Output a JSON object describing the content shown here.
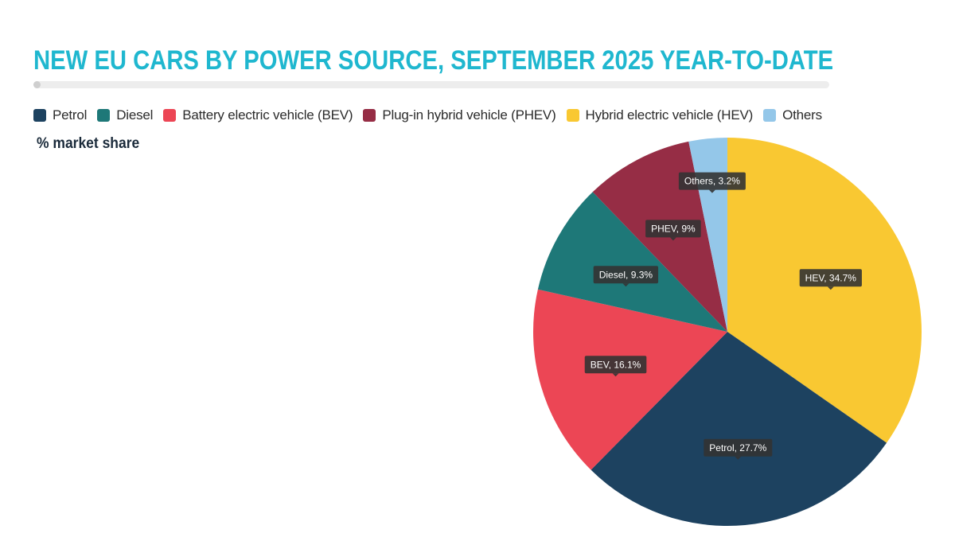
{
  "title": "NEW EU CARS BY POWER SOURCE, SEPTEMBER 2025 YEAR-TO-DATE",
  "subtitle": "% market share",
  "legend": [
    {
      "label": "Petrol",
      "color": "#1d4260"
    },
    {
      "label": "Diesel",
      "color": "#1e7878"
    },
    {
      "label": "Battery electric vehicle (BEV)",
      "color": "#ec4655"
    },
    {
      "label": "Plug-in hybrid vehicle (PHEV)",
      "color": "#962d45"
    },
    {
      "label": "Hybrid electric vehicle (HEV)",
      "color": "#f9c832"
    },
    {
      "label": "Others",
      "color": "#94c7e9"
    }
  ],
  "chart_data": {
    "type": "pie",
    "title": "NEW EU CARS BY POWER SOURCE, SEPTEMBER 2025 YEAR-TO-DATE",
    "subtitle": "% market share",
    "legend_position": "top-left",
    "slices": [
      {
        "name": "HEV",
        "legend": "Hybrid electric vehicle (HEV)",
        "value": 34.7,
        "label": "HEV, 34.7%",
        "color": "#f9c832"
      },
      {
        "name": "Petrol",
        "legend": "Petrol",
        "value": 27.7,
        "label": "Petrol, 27.7%",
        "color": "#1d4260"
      },
      {
        "name": "BEV",
        "legend": "Battery electric vehicle (BEV)",
        "value": 16.1,
        "label": "BEV, 16.1%",
        "color": "#ec4655"
      },
      {
        "name": "Diesel",
        "legend": "Diesel",
        "value": 9.3,
        "label": "Diesel, 9.3%",
        "color": "#1e7878"
      },
      {
        "name": "PHEV",
        "legend": "Plug-in hybrid vehicle (PHEV)",
        "value": 9,
        "label": "PHEV, 9%",
        "color": "#962d45"
      },
      {
        "name": "Others",
        "legend": "Others",
        "value": 3.2,
        "label": "Others, 3.2%",
        "color": "#94c7e9"
      }
    ]
  }
}
